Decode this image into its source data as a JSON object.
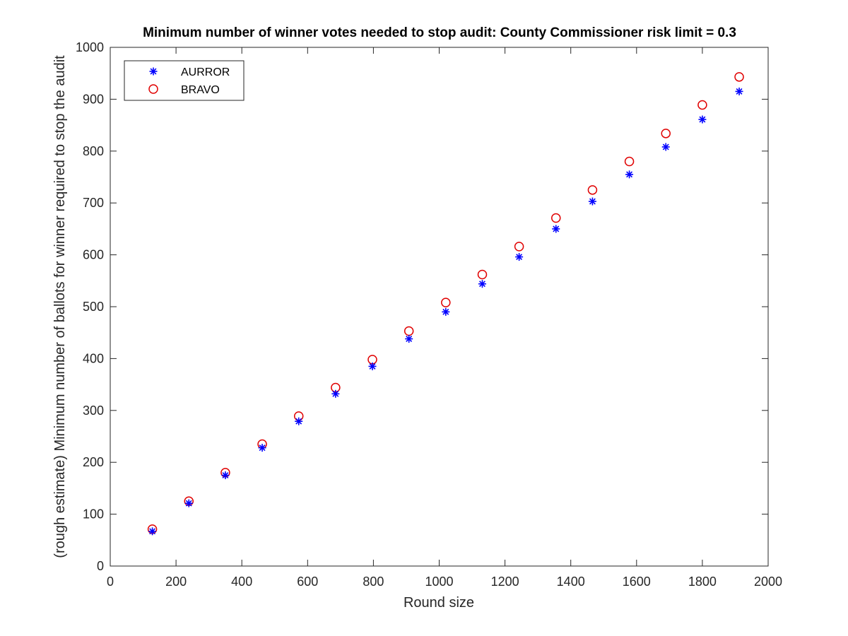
{
  "chart_data": {
    "type": "scatter",
    "title": "Minimum number of winner votes needed to stop audit: County Commissioner risk limit = 0.3",
    "xlabel": "Round size",
    "ylabel": "(rough estimate) Minimum number of ballots for winner required to stop the audit",
    "xlim": [
      0,
      2000
    ],
    "ylim": [
      0,
      1000
    ],
    "xticks": [
      0,
      200,
      400,
      600,
      800,
      1000,
      1200,
      1400,
      1600,
      1800,
      2000
    ],
    "yticks": [
      0,
      100,
      200,
      300,
      400,
      500,
      600,
      700,
      800,
      900,
      1000
    ],
    "grid": false,
    "legend_position": "top-left",
    "series": [
      {
        "name": "AURROR",
        "marker": "asterisk",
        "color": "#0000ff",
        "x": [
          128,
          239,
          350,
          462,
          573,
          685,
          797,
          908,
          1020,
          1131,
          1243,
          1355,
          1466,
          1578,
          1689,
          1800,
          1912
        ],
        "y": [
          67,
          121,
          175,
          228,
          279,
          332,
          385,
          438,
          490,
          544,
          596,
          650,
          703,
          755,
          808,
          861,
          915
        ]
      },
      {
        "name": "BRAVO",
        "marker": "circle",
        "color": "#e00000",
        "x": [
          128,
          239,
          350,
          462,
          573,
          685,
          797,
          908,
          1020,
          1131,
          1243,
          1355,
          1466,
          1578,
          1689,
          1800,
          1912
        ],
        "y": [
          71,
          125,
          180,
          235,
          289,
          344,
          398,
          453,
          508,
          562,
          616,
          671,
          725,
          780,
          834,
          889,
          943
        ]
      }
    ]
  }
}
